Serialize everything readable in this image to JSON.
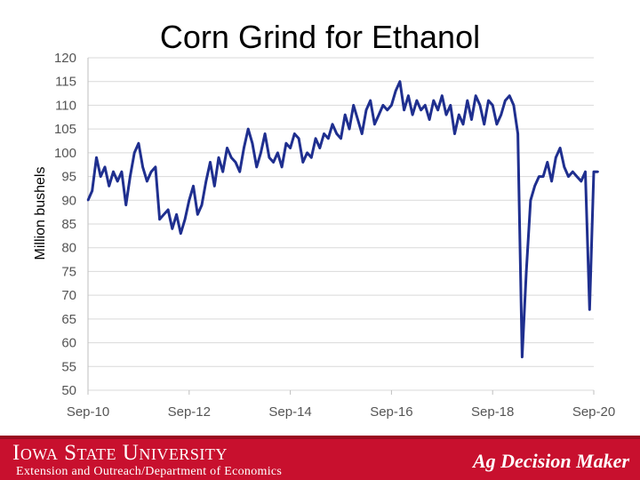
{
  "slide": {
    "title": "Corn Grind for Ethanol"
  },
  "footer": {
    "university": "Iowa State University",
    "department": "Extension and Outreach/Department of Economics",
    "program": "Ag Decision Maker",
    "background_color": "#c8102e"
  },
  "chart_data": {
    "type": "line",
    "title": "Corn Grind for Ethanol",
    "xlabel": "",
    "ylabel": "Million bushels",
    "ylim": [
      50,
      120
    ],
    "yticks": [
      50,
      55,
      60,
      65,
      70,
      75,
      80,
      85,
      90,
      95,
      100,
      105,
      110,
      115,
      120
    ],
    "xticks": [
      "Sep-10",
      "Sep-12",
      "Sep-14",
      "Sep-16",
      "Sep-18",
      "Sep-20"
    ],
    "grid": true,
    "line_color": "#1f2f8f",
    "series": [
      {
        "x": [
          "2010-09",
          "2010-10",
          "2010-11",
          "2010-12",
          "2011-01",
          "2011-02",
          "2011-03",
          "2011-04",
          "2011-05",
          "2011-06",
          "2011-07",
          "2011-08",
          "2011-09",
          "2011-10",
          "2011-11",
          "2011-12",
          "2012-01",
          "2012-02",
          "2012-03",
          "2012-04",
          "2012-05",
          "2012-06",
          "2012-07",
          "2012-08",
          "2012-09",
          "2012-10",
          "2012-11",
          "2012-12",
          "2013-01",
          "2013-02",
          "2013-03",
          "2013-04",
          "2013-05",
          "2013-06",
          "2013-07",
          "2013-08",
          "2013-09",
          "2013-10",
          "2013-11",
          "2013-12",
          "2014-01",
          "2014-02",
          "2014-03",
          "2014-04",
          "2014-05",
          "2014-06",
          "2014-07",
          "2014-08",
          "2014-09",
          "2014-10",
          "2014-11",
          "2014-12",
          "2015-01",
          "2015-02",
          "2015-03",
          "2015-04",
          "2015-05",
          "2015-06",
          "2015-07",
          "2015-08",
          "2015-09",
          "2015-10",
          "2015-11",
          "2015-12",
          "2016-01",
          "2016-02",
          "2016-03",
          "2016-04",
          "2016-05",
          "2016-06",
          "2016-07",
          "2016-08",
          "2016-09",
          "2016-10",
          "2016-11",
          "2016-12",
          "2017-01",
          "2017-02",
          "2017-03",
          "2017-04",
          "2017-05",
          "2017-06",
          "2017-07",
          "2017-08",
          "2017-09",
          "2017-10",
          "2017-11",
          "2017-12",
          "2018-01",
          "2018-02",
          "2018-03",
          "2018-04",
          "2018-05",
          "2018-06",
          "2018-07",
          "2018-08",
          "2018-09",
          "2018-10",
          "2018-11",
          "2018-12",
          "2019-01",
          "2019-02",
          "2019-03",
          "2019-04",
          "2019-05",
          "2019-06",
          "2019-07",
          "2019-08",
          "2019-09",
          "2019-10",
          "2019-11",
          "2019-12",
          "2020-01",
          "2020-02",
          "2020-03",
          "2020-04",
          "2020-05",
          "2020-06",
          "2020-07",
          "2020-08",
          "2020-09",
          "2020-10"
        ],
        "values": [
          90,
          92,
          99,
          95,
          97,
          93,
          96,
          94,
          96,
          89,
          95,
          100,
          102,
          97,
          94,
          96,
          97,
          86,
          87,
          88,
          84,
          87,
          83,
          86,
          90,
          93,
          87,
          89,
          94,
          98,
          93,
          99,
          96,
          101,
          99,
          98,
          96,
          101,
          105,
          102,
          97,
          100,
          104,
          99,
          98,
          100,
          97,
          102,
          101,
          104,
          103,
          98,
          100,
          99,
          103,
          101,
          104,
          103,
          106,
          104,
          103,
          108,
          105,
          110,
          107,
          104,
          109,
          111,
          106,
          108,
          110,
          109,
          110,
          113,
          115,
          109,
          112,
          108,
          111,
          109,
          110,
          107,
          111,
          109,
          112,
          108,
          110,
          104,
          108,
          106,
          111,
          107,
          112,
          110,
          106,
          111,
          110,
          106,
          108,
          111,
          112,
          110,
          104,
          57,
          75,
          90,
          93,
          95,
          95,
          98,
          94,
          99,
          101,
          97,
          95,
          96,
          95,
          94,
          96,
          67,
          96,
          96
        ]
      }
    ]
  }
}
